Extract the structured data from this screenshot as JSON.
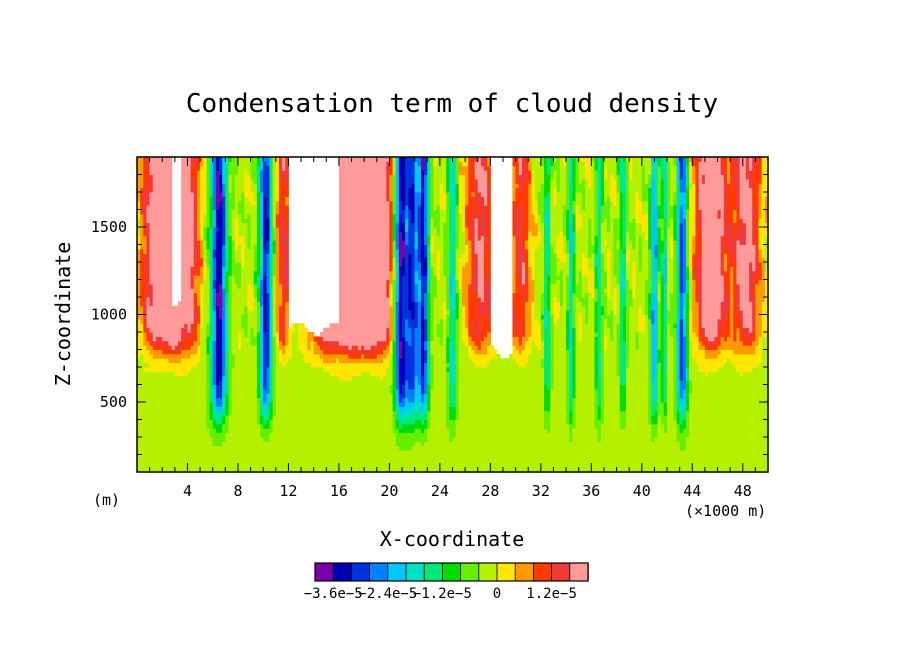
{
  "chart_data": {
    "type": "heatmap",
    "title": "Condensation term of cloud density",
    "xlabel": "X-coordinate",
    "ylabel": "Z-coordinate",
    "x_unit_note": "(m)",
    "x_scale_note": "(×1000 m)",
    "xlim": [
      0,
      50
    ],
    "ylim": [
      100,
      1900
    ],
    "x_ticks": [
      4,
      8,
      12,
      16,
      20,
      24,
      28,
      32,
      36,
      40,
      44,
      48
    ],
    "y_ticks": [
      500,
      1000,
      1500
    ],
    "colorbar": {
      "colors": [
        "#7a00a8",
        "#0000b4",
        "#0033e0",
        "#0080ff",
        "#00c8ff",
        "#00e0c0",
        "#00e878",
        "#00dc00",
        "#66ee00",
        "#b4f000",
        "#ffe600",
        "#ff9a00",
        "#ff3a00",
        "#f03a3a",
        "#ff9a9a"
      ],
      "labels": [
        "−3.6e−5",
        "−2.4e−5",
        "−1.2e−5",
        "0",
        "1.2e−5"
      ]
    },
    "field_notes": "background near-zero (yellow-green) below ~900 m; strong positive condensation (red) cores near x≈1-3, 15-20, 27-30, 45-49 km above ~800 m; strong negative (blue) columns near x≈6-7, 10-11, 20-23, 40-44 km; undefined (white) regions near x≈12-16, 28-30 km above ~900 m"
  }
}
